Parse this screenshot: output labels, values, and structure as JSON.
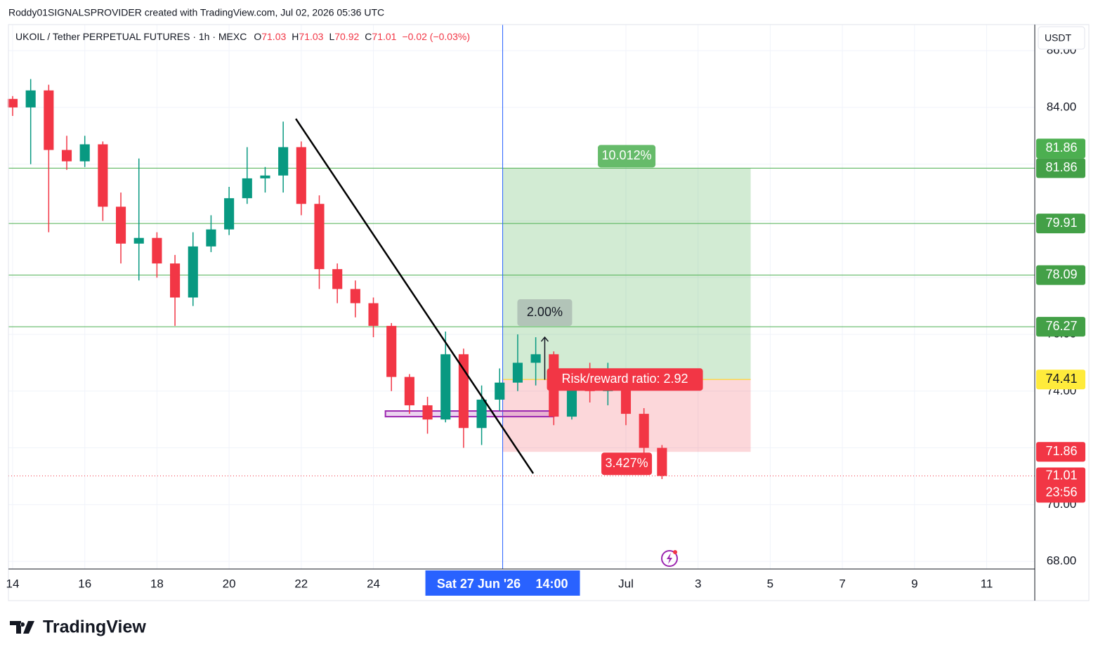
{
  "header": {
    "credit": "Roddy01SIGNALSPROVIDER created with TradingView.com, Jul 02, 2026 05:36 UTC"
  },
  "footer": {
    "brand": "TradingView"
  },
  "chart_data": {
    "type": "candlestick",
    "legend": {
      "symbol": "UKOIL / Tether PERPETUAL FUTURES · 1h · MEXC",
      "fields": [
        {
          "key": "O",
          "value": 71.03
        },
        {
          "key": "H",
          "value": 71.03
        },
        {
          "key": "L",
          "value": 70.92
        },
        {
          "key": "C",
          "value": 71.01
        }
      ],
      "change": "−0.02 (−0.03%)"
    },
    "currency": "USDT",
    "x": [
      "2026-06-14T00:00",
      "2026-06-14T12:00",
      "2026-06-15T00:00",
      "2026-06-15T12:00",
      "2026-06-16T00:00",
      "2026-06-16T12:00",
      "2026-06-17T00:00",
      "2026-06-17T12:00",
      "2026-06-18T00:00",
      "2026-06-18T12:00",
      "2026-06-19T00:00",
      "2026-06-19T12:00",
      "2026-06-20T00:00",
      "2026-06-20T12:00",
      "2026-06-21T00:00",
      "2026-06-21T12:00",
      "2026-06-22T00:00",
      "2026-06-22T12:00",
      "2026-06-23T00:00",
      "2026-06-23T12:00",
      "2026-06-24T00:00",
      "2026-06-24T12:00",
      "2026-06-25T00:00",
      "2026-06-25T12:00",
      "2026-06-26T00:00",
      "2026-06-26T12:00",
      "2026-06-27T00:00",
      "2026-06-27T12:00",
      "2026-06-28T00:00",
      "2026-06-28T12:00",
      "2026-06-29T00:00",
      "2026-06-29T12:00",
      "2026-06-30T00:00",
      "2026-06-30T12:00",
      "2026-07-01T00:00",
      "2026-07-01T12:00",
      "2026-07-02T00:00"
    ],
    "open": [
      84.3,
      84.0,
      84.6,
      82.5,
      82.1,
      82.7,
      80.5,
      79.2,
      79.4,
      78.5,
      77.3,
      79.1,
      79.7,
      80.8,
      81.5,
      81.6,
      82.6,
      80.6,
      78.3,
      77.6,
      77.1,
      76.3,
      74.5,
      73.5,
      73.0,
      75.3,
      72.7,
      73.7,
      74.3,
      75.0,
      75.3,
      73.1,
      74.2,
      74.0,
      74.3,
      73.2,
      72.0
    ],
    "high": [
      84.4,
      85.0,
      84.8,
      83.0,
      83.0,
      82.8,
      81.0,
      82.2,
      79.6,
      78.8,
      79.6,
      80.2,
      81.2,
      82.6,
      81.9,
      83.5,
      82.8,
      80.9,
      78.5,
      77.9,
      77.3,
      76.4,
      74.6,
      73.8,
      76.1,
      75.5,
      74.2,
      74.8,
      76.0,
      75.9,
      75.4,
      74.6,
      75.0,
      75.0,
      74.5,
      73.4,
      72.1
    ],
    "low": [
      83.7,
      82.0,
      79.6,
      81.8,
      81.9,
      80.0,
      78.5,
      77.9,
      78.0,
      76.3,
      77.0,
      78.9,
      79.5,
      80.6,
      81.0,
      81.0,
      80.2,
      77.6,
      77.1,
      76.6,
      75.9,
      74.0,
      73.2,
      72.5,
      72.9,
      72.0,
      72.1,
      73.3,
      74.0,
      74.2,
      72.8,
      73.0,
      73.6,
      73.5,
      72.8,
      71.7,
      70.9
    ],
    "close": [
      84.0,
      84.6,
      82.5,
      82.1,
      82.7,
      80.5,
      79.2,
      79.4,
      78.5,
      77.3,
      79.1,
      79.7,
      80.8,
      81.5,
      81.6,
      82.6,
      80.6,
      78.3,
      77.6,
      77.1,
      76.3,
      74.5,
      73.5,
      73.0,
      75.3,
      72.7,
      73.7,
      74.3,
      75.0,
      75.3,
      73.1,
      74.2,
      74.0,
      74.3,
      73.2,
      72.0,
      71.01
    ],
    "up_color": "#089981",
    "down_color": "#f23645",
    "xlim": [
      "2026-06-13T21:12",
      "2026-07-12T08:00"
    ],
    "xticks": [
      {
        "value": "2026-06-14T00:00",
        "label": "14"
      },
      {
        "value": "2026-06-16T00:00",
        "label": "16"
      },
      {
        "value": "2026-06-18T00:00",
        "label": "18"
      },
      {
        "value": "2026-06-20T00:00",
        "label": "20"
      },
      {
        "value": "2026-06-22T00:00",
        "label": "22"
      },
      {
        "value": "2026-06-24T00:00",
        "label": "24"
      },
      {
        "value": "2026-07-01T00:00",
        "label": "Jul"
      },
      {
        "value": "2026-07-03T00:00",
        "label": "3"
      },
      {
        "value": "2026-07-05T00:00",
        "label": "5"
      },
      {
        "value": "2026-07-07T00:00",
        "label": "7"
      },
      {
        "value": "2026-07-09T00:00",
        "label": "9"
      },
      {
        "value": "2026-07-11T00:00",
        "label": "11"
      }
    ],
    "ylim": [
      67.73,
      86.92
    ],
    "yticks": [
      {
        "value": 68,
        "label": "68.00"
      },
      {
        "value": 70,
        "label": "70.00"
      },
      {
        "value": 72,
        "label": "72.00"
      },
      {
        "value": 74,
        "label": "74.00"
      },
      {
        "value": 76,
        "label": "76.00"
      },
      {
        "value": 78,
        "label": "78.00"
      },
      {
        "value": 80,
        "label": "80.00"
      },
      {
        "value": 82,
        "label": "82.00"
      },
      {
        "value": 84,
        "label": "84.00"
      },
      {
        "value": 86,
        "label": "86.00"
      }
    ],
    "grid": true,
    "hlines": {
      "values": [
        81.86,
        79.91,
        78.09,
        76.27
      ],
      "color": "#4caf50"
    },
    "last_price": {
      "value": 71.01,
      "countdown": "23:56",
      "color": "#f23645"
    },
    "price_labels": [
      {
        "value": 81.86,
        "color": "#4caf50",
        "text_color": "#ffffff"
      },
      {
        "value": 81.86,
        "color": "#43a047",
        "text_color": "#ffffff"
      },
      {
        "value": 79.91,
        "color": "#43a047",
        "text_color": "#ffffff"
      },
      {
        "value": 78.09,
        "color": "#43a047",
        "text_color": "#ffffff"
      },
      {
        "value": 76.27,
        "color": "#43a047",
        "text_color": "#ffffff"
      },
      {
        "value": 74.41,
        "color": "#ffeb3b",
        "text_color": "#131722"
      },
      {
        "value": 71.86,
        "color": "#f23645",
        "text_color": "#ffffff"
      }
    ],
    "crosshair": {
      "x": "2026-06-27T14:00",
      "date_label": "Sat 27 Jun '26",
      "time_label": "14:00",
      "color": "#2962ff"
    },
    "position": {
      "start": "2026-06-27T14:00",
      "end": "2026-07-04T11:00",
      "entry": 74.41,
      "target": 81.86,
      "stop": 71.86,
      "target_label": "10.012%",
      "stop_label": "3.427%",
      "ratio_label": "Risk/reward ratio: 2.92"
    },
    "measure": {
      "x": "2026-06-28T18:00",
      "from": 74.4,
      "to": 75.9,
      "label": "2.00%"
    },
    "trendline": {
      "x": [
        "2026-06-21T20:24",
        "2026-06-28T10:20"
      ],
      "y": [
        83.6,
        71.1
      ],
      "color": "#000000"
    },
    "rectangle": {
      "x": [
        "2026-06-24T08:00",
        "2026-06-29T00:00"
      ],
      "y": [
        73.3,
        73.1
      ],
      "color": "#9c27b0"
    }
  }
}
